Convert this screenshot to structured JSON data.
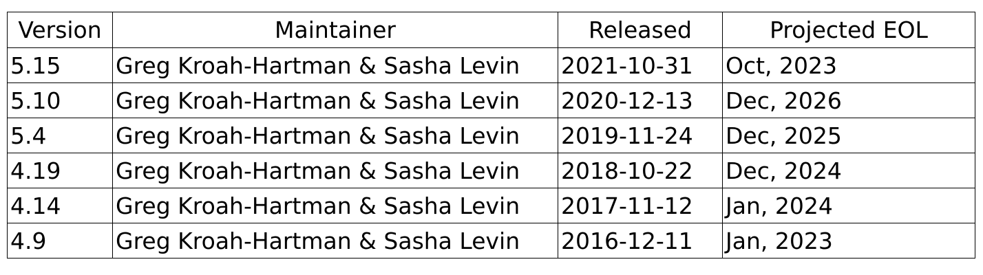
{
  "table": {
    "headers": [
      "Version",
      "Maintainer",
      "Released",
      "Projected EOL"
    ],
    "rows": [
      [
        "5.15",
        "Greg Kroah-Hartman & Sasha Levin",
        "2021-10-31",
        "Oct, 2023"
      ],
      [
        "5.10",
        "Greg Kroah-Hartman & Sasha Levin",
        "2020-12-13",
        "Dec, 2026"
      ],
      [
        "5.4",
        "Greg Kroah-Hartman & Sasha Levin",
        "2019-11-24",
        "Dec, 2025"
      ],
      [
        "4.19",
        "Greg Kroah-Hartman & Sasha Levin",
        "2018-10-22",
        "Dec, 2024"
      ],
      [
        "4.14",
        "Greg Kroah-Hartman & Sasha Levin",
        "2017-11-12",
        "Jan, 2024"
      ],
      [
        "4.9",
        "Greg Kroah-Hartman & Sasha Levin",
        "2016-12-11",
        "Jan, 2023"
      ]
    ]
  }
}
